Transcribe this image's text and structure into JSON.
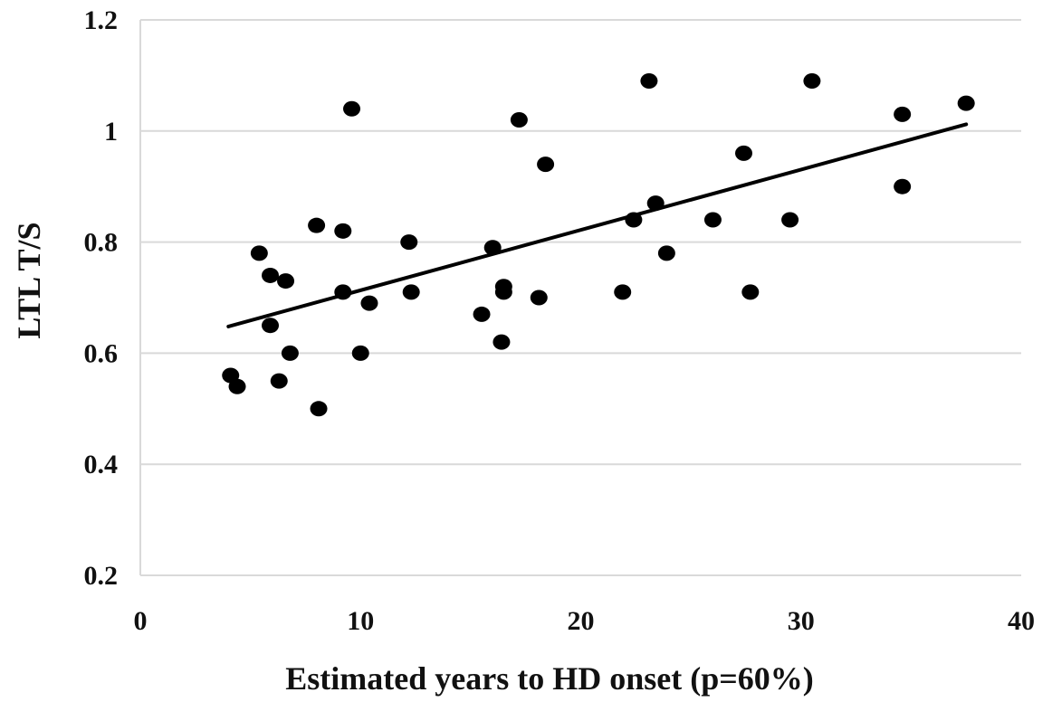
{
  "chart_data": {
    "type": "scatter",
    "title": "",
    "xlabel": "Estimated years to HD onset (p=60%)",
    "ylabel": "LTL T/S",
    "xlim": [
      0,
      40
    ],
    "ylim": [
      0.2,
      1.2
    ],
    "x_ticks": [
      0,
      10,
      20,
      30,
      40
    ],
    "x_tick_labels": [
      "0",
      "10",
      "20",
      "30",
      "40"
    ],
    "y_ticks": [
      0.2,
      0.4,
      0.6,
      0.8,
      1.0,
      1.2
    ],
    "y_tick_labels": [
      "0.2",
      "0.4",
      "0.6",
      "0.8",
      "1",
      "1.2"
    ],
    "grid": "horizontal",
    "legend": "none",
    "marker_color": "#000000",
    "gridline_color": "#d9d9d9",
    "series": [
      {
        "points": [
          [
            4.1,
            0.56
          ],
          [
            4.4,
            0.54
          ],
          [
            5.4,
            0.78
          ],
          [
            5.9,
            0.74
          ],
          [
            5.9,
            0.65
          ],
          [
            6.3,
            0.55
          ],
          [
            6.6,
            0.73
          ],
          [
            6.8,
            0.6
          ],
          [
            8.0,
            0.83
          ],
          [
            8.1,
            0.5
          ],
          [
            9.2,
            0.82
          ],
          [
            9.2,
            0.71
          ],
          [
            9.6,
            1.04
          ],
          [
            10.0,
            0.6
          ],
          [
            10.4,
            0.69
          ],
          [
            12.2,
            0.8
          ],
          [
            12.3,
            0.71
          ],
          [
            15.5,
            0.67
          ],
          [
            16.0,
            0.79
          ],
          [
            16.4,
            0.62
          ],
          [
            16.5,
            0.72
          ],
          [
            16.5,
            0.71
          ],
          [
            17.2,
            1.02
          ],
          [
            18.1,
            0.7
          ],
          [
            18.4,
            0.94
          ],
          [
            21.9,
            0.71
          ],
          [
            22.4,
            0.84
          ],
          [
            23.1,
            1.09
          ],
          [
            23.4,
            0.87
          ],
          [
            23.9,
            0.78
          ],
          [
            26.0,
            0.84
          ],
          [
            27.4,
            0.96
          ],
          [
            27.7,
            0.71
          ],
          [
            29.5,
            0.84
          ],
          [
            30.5,
            1.09
          ],
          [
            34.6,
            1.03
          ],
          [
            34.6,
            0.9
          ],
          [
            37.5,
            1.05
          ]
        ]
      }
    ],
    "trendline": {
      "type": "linear",
      "x": [
        4.0,
        37.5
      ],
      "y": [
        0.648,
        1.012
      ],
      "color": "#000000"
    }
  }
}
